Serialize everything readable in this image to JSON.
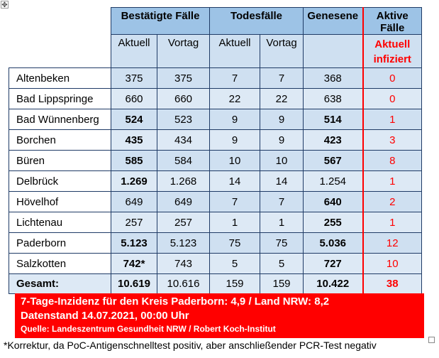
{
  "header": {
    "groups": {
      "confirmed": "Bestätigte Fälle",
      "deaths": "Todesfälle",
      "recovered": "Genesene",
      "active": "Aktive Fälle"
    },
    "sub": {
      "current": "Aktuell",
      "previous": "Vortag",
      "active_line1": "Aktuell",
      "active_line2": "infiziert"
    }
  },
  "rows": [
    {
      "name": "Altenbeken",
      "confirmed": "375",
      "confirmed_prev": "375",
      "deaths": "7",
      "deaths_prev": "7",
      "recovered": "368",
      "active": "0"
    },
    {
      "name": "Bad Lippspringe",
      "confirmed": "660",
      "confirmed_prev": "660",
      "deaths": "22",
      "deaths_prev": "22",
      "recovered": "638",
      "active": "0"
    },
    {
      "name": "Bad Wünnenberg",
      "confirmed": "524",
      "confirmed_prev": "523",
      "deaths": "9",
      "deaths_prev": "9",
      "recovered": "514",
      "active": "1"
    },
    {
      "name": "Borchen",
      "confirmed": "435",
      "confirmed_prev": "434",
      "deaths": "9",
      "deaths_prev": "9",
      "recovered": "423",
      "active": "3"
    },
    {
      "name": "Büren",
      "confirmed": "585",
      "confirmed_prev": "584",
      "deaths": "10",
      "deaths_prev": "10",
      "recovered": "567",
      "active": "8"
    },
    {
      "name": "Delbrück",
      "confirmed": "1.269",
      "confirmed_prev": "1.268",
      "deaths": "14",
      "deaths_prev": "14",
      "recovered": "1.254",
      "active": "1"
    },
    {
      "name": "Hövelhof",
      "confirmed": "649",
      "confirmed_prev": "649",
      "deaths": "7",
      "deaths_prev": "7",
      "recovered": "640",
      "active": "2"
    },
    {
      "name": "Lichtenau",
      "confirmed": "257",
      "confirmed_prev": "257",
      "deaths": "1",
      "deaths_prev": "1",
      "recovered": "255",
      "active": "1"
    },
    {
      "name": "Paderborn",
      "confirmed": "5.123",
      "confirmed_prev": "5.123",
      "deaths": "75",
      "deaths_prev": "75",
      "recovered": "5.036",
      "active": "12"
    },
    {
      "name": "Salzkotten",
      "confirmed": "742*",
      "confirmed_prev": "743",
      "deaths": "5",
      "deaths_prev": "5",
      "recovered": "727",
      "active": "10"
    }
  ],
  "total": {
    "label": "Gesamt:",
    "confirmed": "10.619",
    "confirmed_prev": "10.616",
    "deaths": "159",
    "deaths_prev": "159",
    "recovered": "10.422",
    "active": "38"
  },
  "banner": {
    "line1": "7-Tage-Inzidenz für den Kreis Paderborn: 4,9 / Land NRW: 8,2",
    "line2": "Datenstand 14.07.2021, 00:00 Uhr",
    "line3": "Quelle: Landeszentrum Gesundheit NRW / Robert Koch-Institut"
  },
  "footnote": "*Korrektur, da PoC-Antigenschnelltest positiv, aber anschließender PCR-Test negativ",
  "colors": {
    "header_blue": "#9dc3e6",
    "cell_blue": "#dde9f5",
    "alert_red": "#ff0000"
  }
}
